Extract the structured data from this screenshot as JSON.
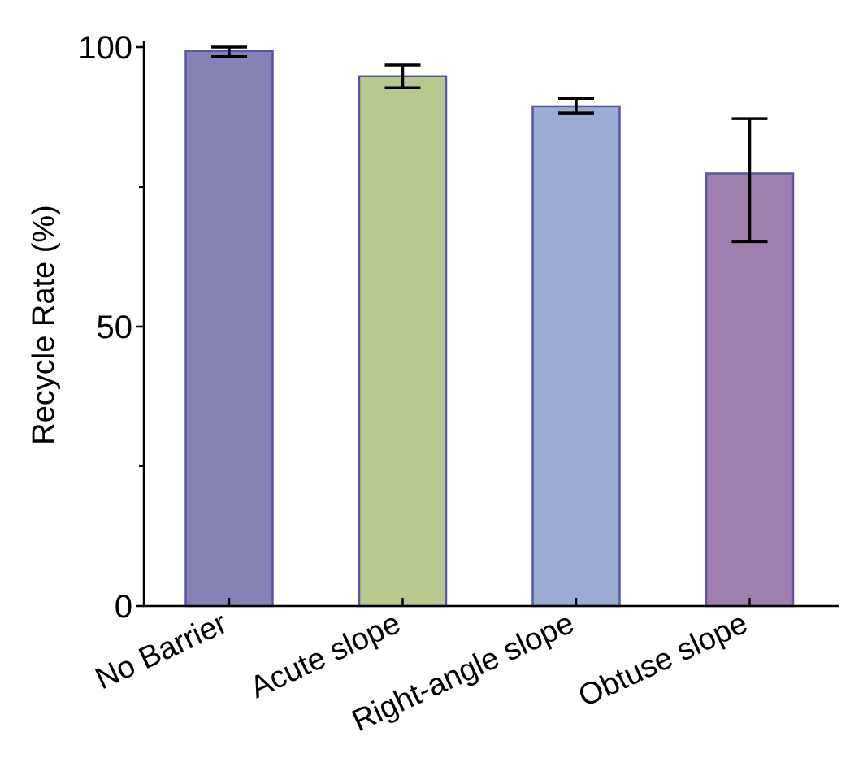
{
  "chart_data": {
    "type": "bar",
    "title": "",
    "xlabel": "",
    "ylabel": "Recycle Rate (%)",
    "ylim": [
      0,
      100
    ],
    "yticks": [
      0,
      50,
      100
    ],
    "yminor_ticks": [
      25,
      75
    ],
    "categories": [
      "No Barrier",
      "Acute slope",
      "Right-angle slope",
      "Obtuse slope"
    ],
    "values": [
      99.3,
      94.8,
      89.4,
      77.4
    ],
    "error_low": [
      98.3,
      92.7,
      88.2,
      65.2
    ],
    "error_high": [
      100.0,
      96.8,
      90.8,
      87.2
    ],
    "colors": [
      "#8682b4",
      "#b7c98c",
      "#9aacd2",
      "#9d80ae"
    ],
    "bar_edge_color": "#5a55a8",
    "grid": false
  }
}
